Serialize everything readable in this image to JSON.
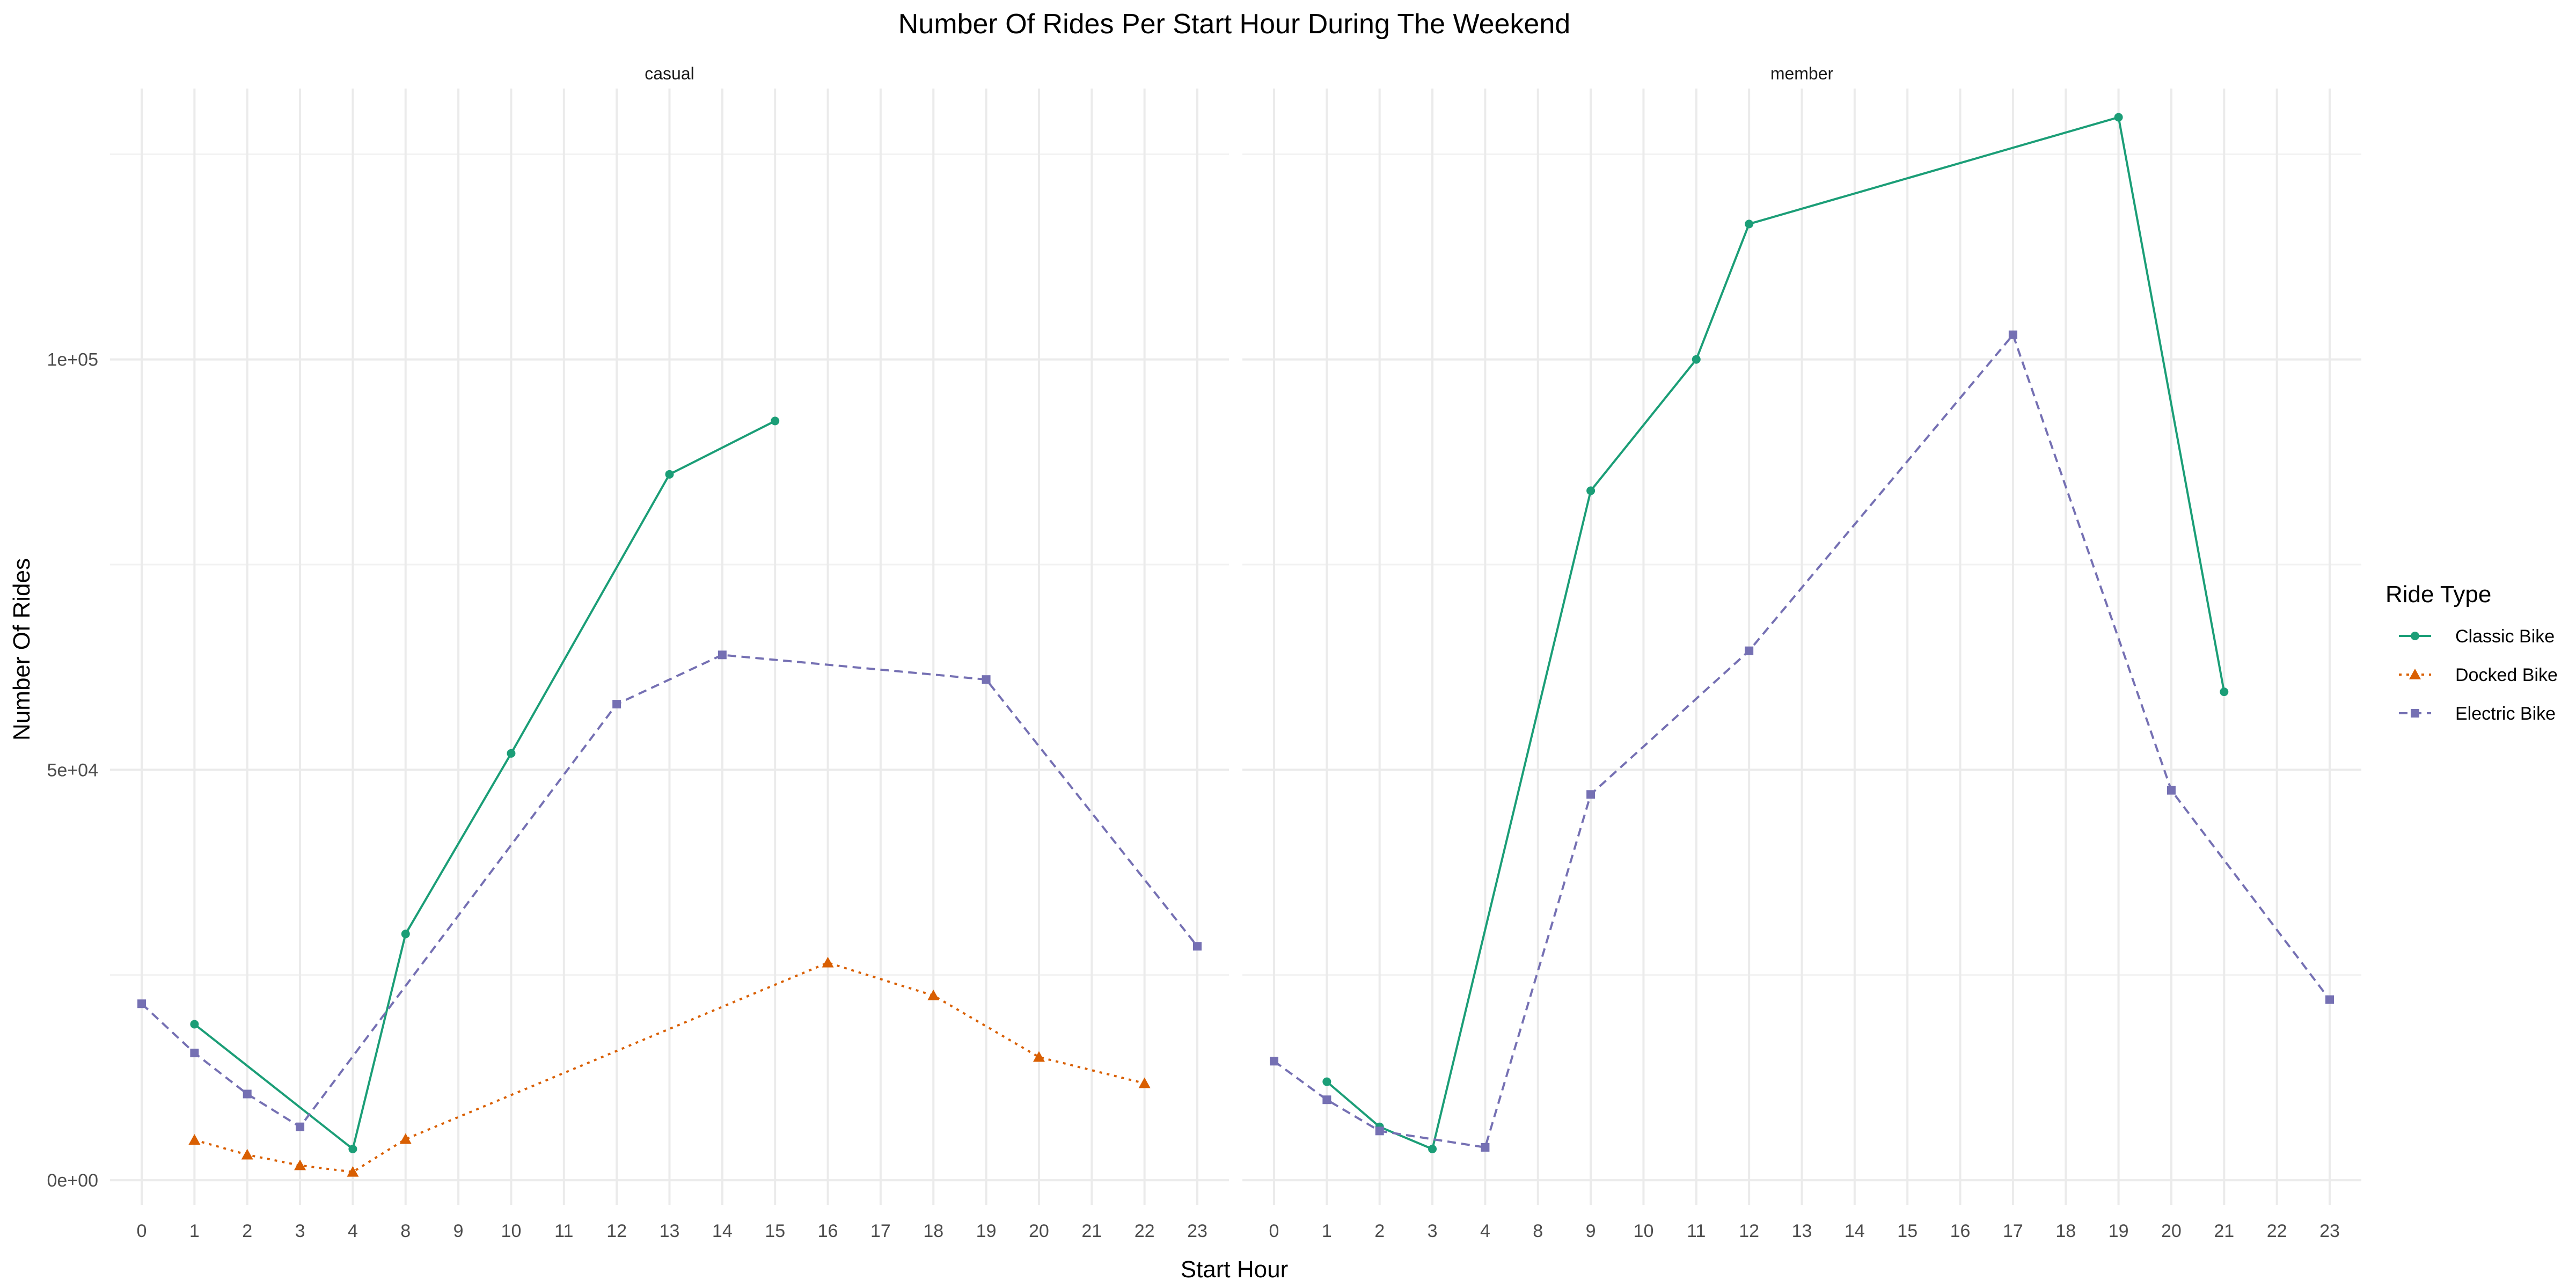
{
  "chart_data": {
    "type": "line",
    "title": "Number Of Rides Per Start Hour During The Weekend",
    "xlabel": "Start Hour",
    "ylabel": "Number Of Rides",
    "y_ticks": [
      {
        "value": 0,
        "label": "0e+00"
      },
      {
        "value": 50000,
        "label": "5e+04"
      },
      {
        "value": 100000,
        "label": "1e+05"
      }
    ],
    "ylim": [
      -3000,
      133000
    ],
    "x_categories": [
      "0",
      "1",
      "2",
      "3",
      "4",
      "8",
      "9",
      "10",
      "11",
      "12",
      "13",
      "14",
      "15",
      "16",
      "17",
      "18",
      "19",
      "20",
      "21",
      "22",
      "23"
    ],
    "grid": true,
    "legend": {
      "title": "Ride Type",
      "position": "right",
      "entries": [
        {
          "name": "Classic Bike",
          "color": "#1b9e77",
          "dash": "solid",
          "marker": "circle"
        },
        {
          "name": "Docked Bike",
          "color": "#d95f02",
          "dash": "dotted",
          "marker": "triangle"
        },
        {
          "name": "Electric Bike",
          "color": "#7570b3",
          "dash": "dashed",
          "marker": "square"
        }
      ]
    },
    "panels": [
      {
        "label": "casual",
        "series": [
          {
            "name": "Classic Bike",
            "points": [
              [
                "1",
                19000
              ],
              [
                "4",
                3800
              ],
              [
                "8",
                30000
              ],
              [
                "10",
                52000
              ],
              [
                "13",
                86000
              ],
              [
                "15",
                92500
              ]
            ]
          },
          {
            "name": "Docked Bike",
            "points": [
              [
                "1",
                4900
              ],
              [
                "2",
                3100
              ],
              [
                "3",
                1800
              ],
              [
                "4",
                1000
              ],
              [
                "8",
                5000
              ],
              [
                "16",
                26500
              ],
              [
                "18",
                22500
              ],
              [
                "20",
                15000
              ],
              [
                "22",
                11800
              ]
            ]
          },
          {
            "name": "Electric Bike",
            "points": [
              [
                "0",
                21500
              ],
              [
                "1",
                15500
              ],
              [
                "2",
                10500
              ],
              [
                "3",
                6500
              ],
              [
                "12",
                58000
              ],
              [
                "14",
                64000
              ],
              [
                "19",
                61000
              ],
              [
                "23",
                28500
              ]
            ]
          }
        ]
      },
      {
        "label": "member",
        "series": [
          {
            "name": "Classic Bike",
            "points": [
              [
                "1",
                12000
              ],
              [
                "2",
                6500
              ],
              [
                "3",
                3800
              ],
              [
                "9",
                84000
              ],
              [
                "11",
                100000
              ],
              [
                "12",
                116500
              ],
              [
                "19",
                129500
              ],
              [
                "21",
                59500
              ]
            ]
          },
          {
            "name": "Electric Bike",
            "points": [
              [
                "0",
                14500
              ],
              [
                "1",
                9800
              ],
              [
                "2",
                6000
              ],
              [
                "4",
                4000
              ],
              [
                "9",
                47000
              ],
              [
                "12",
                64500
              ],
              [
                "17",
                103000
              ],
              [
                "20",
                47500
              ],
              [
                "23",
                22000
              ]
            ]
          }
        ]
      }
    ]
  }
}
